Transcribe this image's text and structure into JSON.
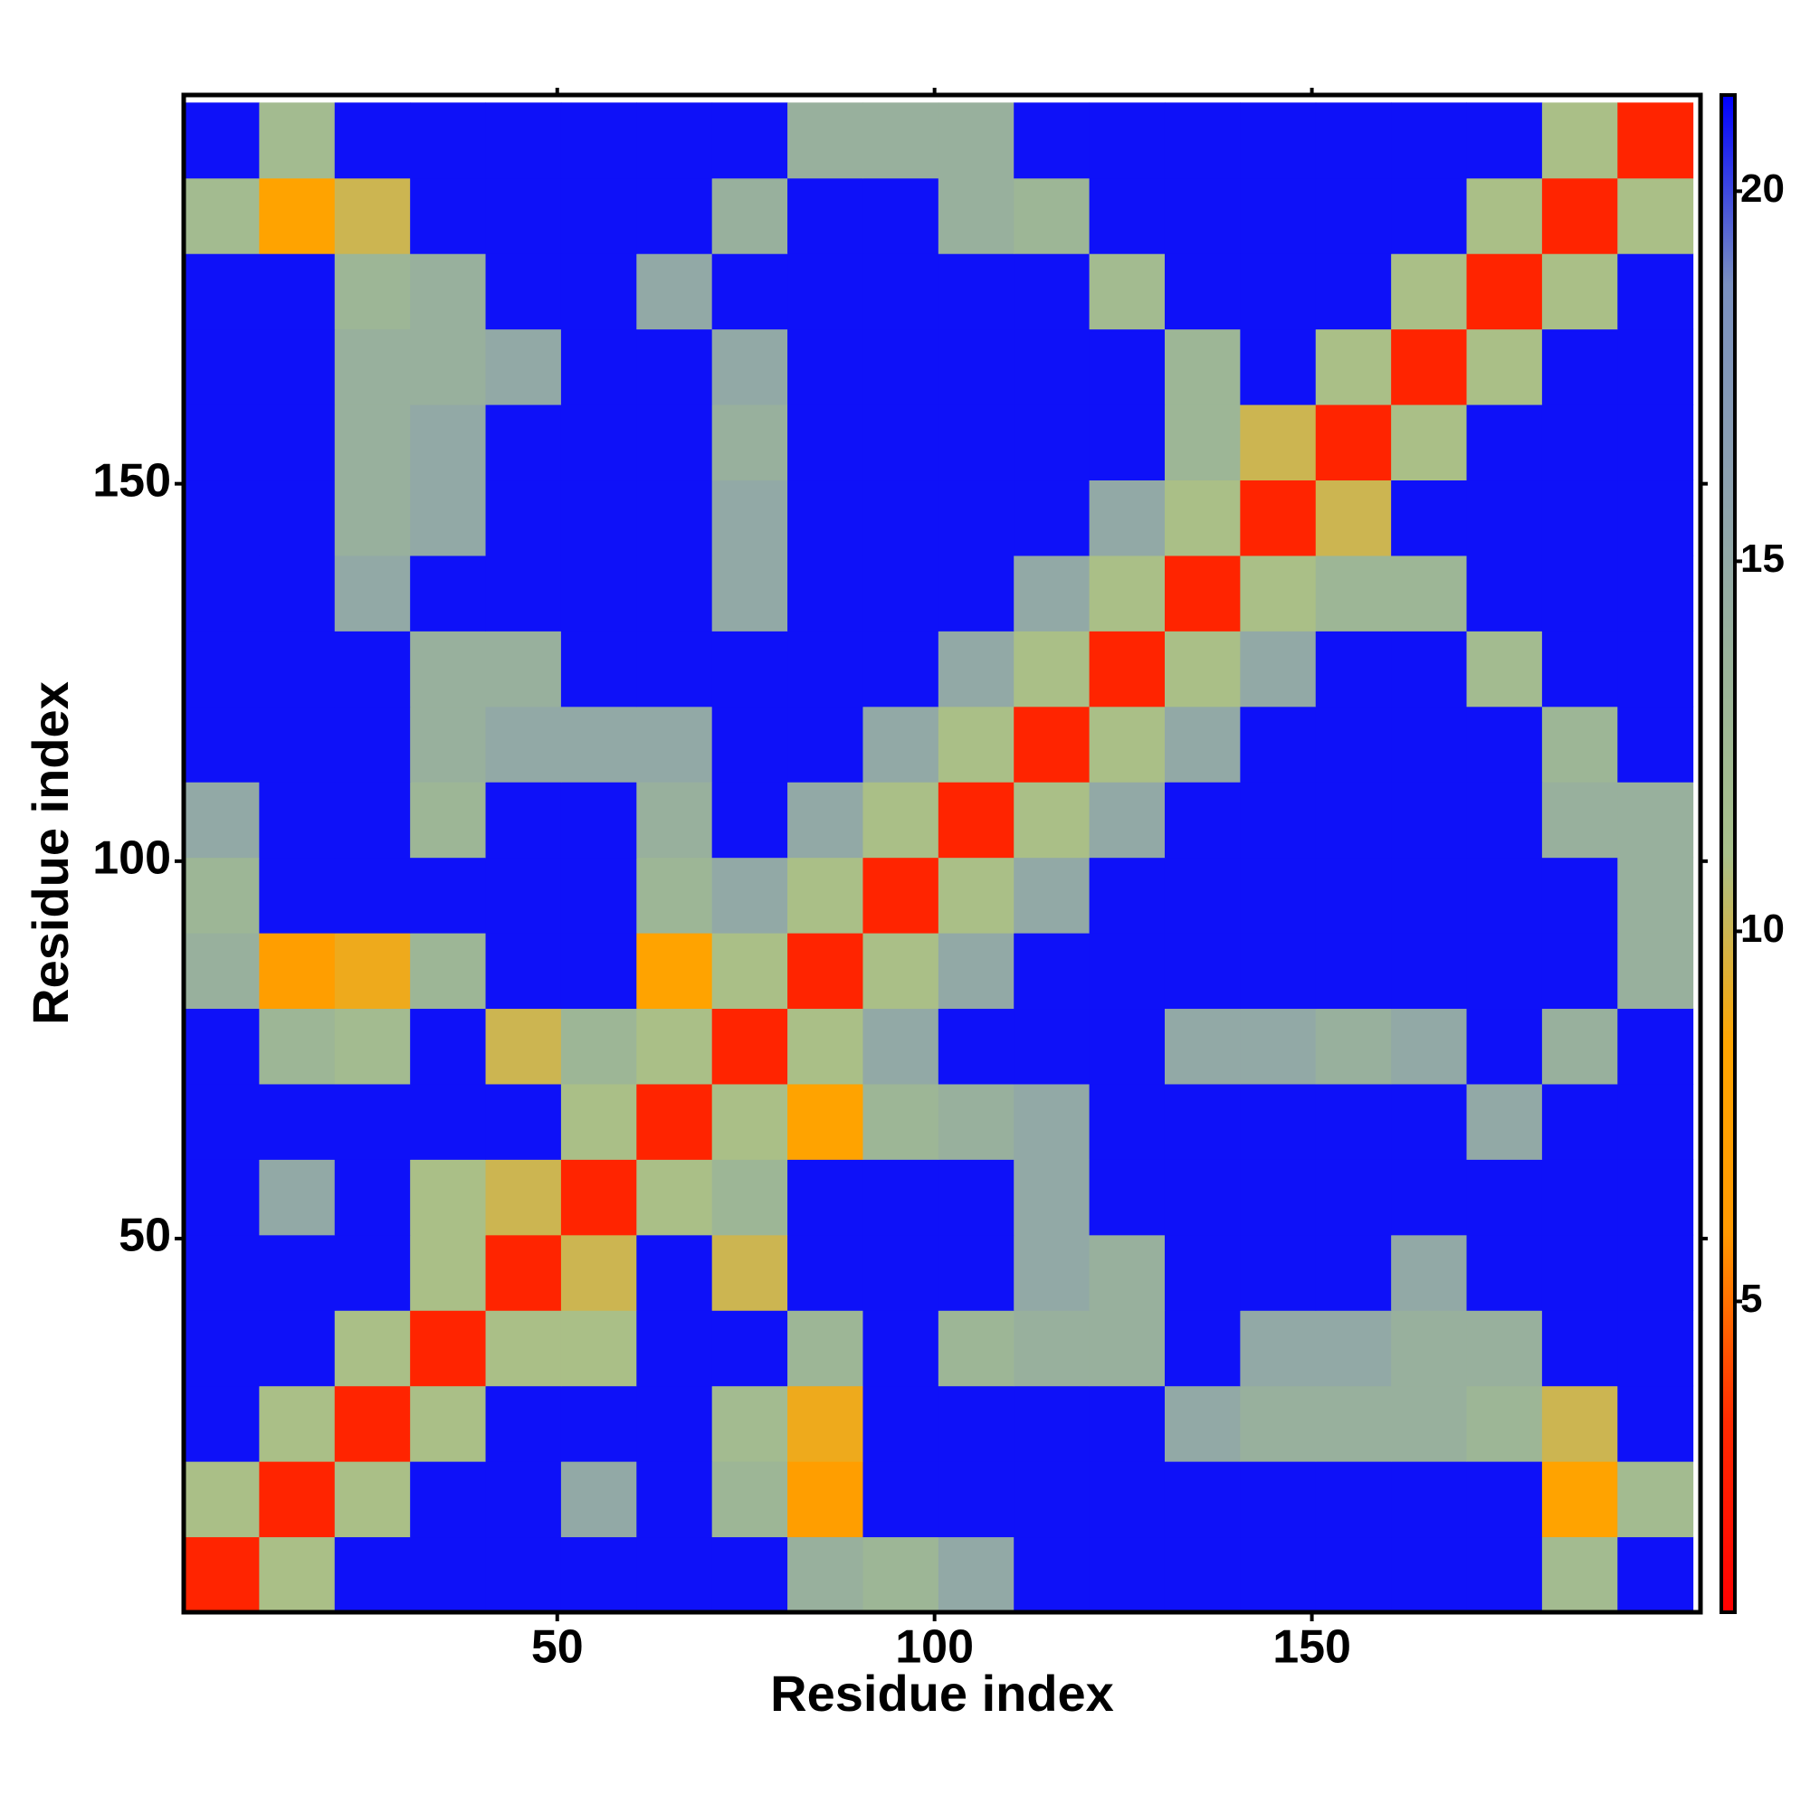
{
  "chart_data": {
    "type": "heatmap",
    "xlabel": "Residue index",
    "ylabel": "Residue index",
    "x": [
      5.5,
      15.5,
      25.5,
      35.5,
      45.5,
      55.5,
      65.5,
      75.5,
      85.5,
      95.5,
      105.5,
      115.5,
      125.5,
      135.5,
      145.5,
      155.5,
      165.5,
      175.5,
      185.5,
      195.5
    ],
    "y": [
      5.5,
      15.5,
      25.5,
      35.5,
      45.5,
      55.5,
      65.5,
      75.5,
      85.5,
      95.5,
      105.5,
      115.5,
      125.5,
      135.5,
      145.5,
      155.5,
      165.5,
      175.5,
      185.5,
      195.5
    ],
    "z": [
      [
        3,
        11,
        21,
        21,
        21,
        21,
        21,
        21,
        14,
        13,
        15,
        21,
        21,
        21,
        21,
        21,
        21,
        21,
        12,
        21
      ],
      [
        11,
        3,
        11,
        21,
        21,
        15,
        21,
        13,
        7,
        21,
        21,
        21,
        21,
        21,
        21,
        21,
        21,
        21,
        8,
        12
      ],
      [
        21,
        11,
        3,
        11,
        21,
        21,
        21,
        12,
        9,
        21,
        21,
        21,
        21,
        15,
        14,
        14,
        14,
        13,
        10,
        21
      ],
      [
        21,
        21,
        11,
        3,
        11,
        11,
        21,
        21,
        13,
        21,
        13,
        14,
        14,
        21,
        15,
        15,
        14,
        14,
        21,
        21
      ],
      [
        21,
        21,
        21,
        11,
        3,
        10,
        21,
        10,
        21,
        21,
        21,
        15,
        14,
        21,
        21,
        21,
        15,
        21,
        21,
        21
      ],
      [
        21,
        15,
        21,
        11,
        10,
        3,
        11,
        13,
        21,
        21,
        21,
        15,
        21,
        21,
        21,
        21,
        21,
        21,
        21,
        21
      ],
      [
        21,
        21,
        21,
        21,
        21,
        11,
        3,
        11,
        8,
        13,
        14,
        15,
        21,
        21,
        21,
        21,
        21,
        15,
        21,
        21
      ],
      [
        21,
        13,
        12,
        21,
        10,
        13,
        11,
        3,
        11,
        15,
        21,
        21,
        21,
        15,
        15,
        14,
        15,
        21,
        14,
        21
      ],
      [
        14,
        7,
        9,
        13,
        21,
        21,
        8,
        11,
        3,
        11,
        15,
        21,
        21,
        21,
        21,
        21,
        21,
        21,
        21,
        14
      ],
      [
        13,
        21,
        21,
        21,
        21,
        21,
        13,
        15,
        11,
        3,
        11,
        15,
        21,
        21,
        21,
        21,
        21,
        21,
        21,
        14
      ],
      [
        15,
        21,
        21,
        13,
        21,
        21,
        14,
        21,
        15,
        11,
        3,
        11,
        15,
        21,
        21,
        21,
        21,
        21,
        14,
        14
      ],
      [
        21,
        21,
        21,
        14,
        15,
        15,
        15,
        21,
        21,
        15,
        11,
        3,
        11,
        15,
        21,
        21,
        21,
        21,
        13,
        21
      ],
      [
        21,
        21,
        21,
        14,
        14,
        21,
        21,
        21,
        21,
        21,
        15,
        11,
        3,
        11,
        15,
        21,
        21,
        12,
        21,
        21
      ],
      [
        21,
        21,
        15,
        21,
        21,
        21,
        21,
        15,
        21,
        21,
        21,
        15,
        11,
        3,
        11,
        13,
        13,
        21,
        21,
        21
      ],
      [
        21,
        21,
        14,
        15,
        21,
        21,
        21,
        15,
        21,
        21,
        21,
        21,
        15,
        11,
        3,
        10,
        21,
        21,
        21,
        21
      ],
      [
        21,
        21,
        14,
        15,
        21,
        21,
        21,
        14,
        21,
        21,
        21,
        21,
        21,
        13,
        10,
        3,
        11,
        21,
        21,
        21
      ],
      [
        21,
        21,
        14,
        14,
        15,
        21,
        21,
        15,
        21,
        21,
        21,
        21,
        21,
        13,
        21,
        11,
        3,
        11,
        21,
        21
      ],
      [
        21,
        21,
        13,
        14,
        21,
        21,
        15,
        21,
        21,
        21,
        21,
        21,
        12,
        21,
        21,
        21,
        11,
        3,
        11,
        21
      ],
      [
        12,
        8,
        10,
        21,
        21,
        21,
        21,
        14,
        21,
        21,
        14,
        13,
        21,
        21,
        21,
        21,
        21,
        11,
        3,
        11
      ],
      [
        21,
        12,
        21,
        21,
        21,
        21,
        21,
        21,
        14,
        14,
        14,
        21,
        21,
        21,
        21,
        21,
        21,
        21,
        11,
        3
      ]
    ],
    "xlim": [
      0.5,
      201.5
    ],
    "ylim": [
      0.5,
      201.5
    ],
    "xticks": [
      50,
      100,
      150
    ],
    "yticks": [
      50,
      100,
      150
    ],
    "zlim": [
      0.8,
      21.3
    ],
    "zticks": [
      5,
      10,
      15,
      20
    ],
    "colormap": [
      "#ff0000",
      "#ff2a00",
      "#ff9900",
      "#ffa500",
      "#a8c08a",
      "#9ab39a",
      "#8ca0b0",
      "#7a90c0",
      "#0000ff"
    ]
  }
}
